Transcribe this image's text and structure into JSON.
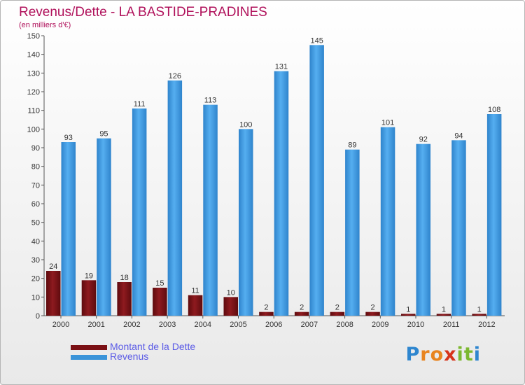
{
  "title": "Revenus/Dette - LA BASTIDE-PRADINES",
  "subtitle": "(en milliers d'€)",
  "logo": {
    "p": "P",
    "r": "r",
    "o": "o",
    "x": "x",
    "i1": "i",
    "t": "t",
    "i2": "i"
  },
  "colors": {
    "dette": "#7a1014",
    "revenus": "#3b94d9",
    "title": "#b0115b"
  },
  "chart_data": {
    "type": "bar",
    "title": "Revenus/Dette - LA BASTIDE-PRADINES",
    "subtitle": "(en milliers d'€)",
    "categories": [
      "2000",
      "2001",
      "2002",
      "2003",
      "2004",
      "2005",
      "2006",
      "2007",
      "2008",
      "2009",
      "2010",
      "2011",
      "2012"
    ],
    "series": [
      {
        "name": "Montant de la Dette",
        "color": "#7a1014",
        "values": [
          24,
          19,
          18,
          15,
          11,
          10,
          2,
          2,
          2,
          2,
          1,
          1,
          1
        ]
      },
      {
        "name": "Revenus",
        "color": "#3b94d9",
        "values": [
          93,
          95,
          111,
          126,
          113,
          100,
          131,
          145,
          89,
          101,
          92,
          94,
          108
        ]
      }
    ],
    "ylim": [
      0,
      150
    ],
    "yticks": [
      0,
      10,
      20,
      30,
      40,
      50,
      60,
      70,
      80,
      90,
      100,
      110,
      120,
      130,
      140,
      150
    ],
    "grid": false,
    "legend": "bottom-left"
  }
}
